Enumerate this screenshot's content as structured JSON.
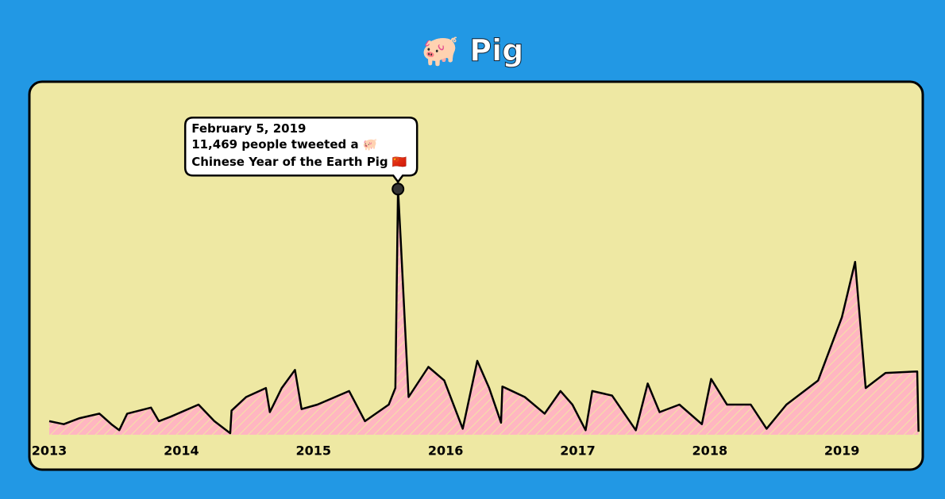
{
  "chart_data": {
    "type": "area",
    "title": "🐖 Pig",
    "x": [
      2013.0,
      2013.11,
      2013.23,
      2013.38,
      2013.47,
      2013.53,
      2013.59,
      2013.77,
      2013.83,
      2013.92,
      2014.13,
      2014.25,
      2014.37,
      2014.38,
      2014.49,
      2014.64,
      2014.67,
      2014.76,
      2014.86,
      2014.91,
      2015.03,
      2015.27,
      2015.39,
      2015.57,
      2015.62,
      2015.64,
      2015.66,
      2015.72,
      2015.87,
      2015.99,
      2016.13,
      2016.24,
      2016.33,
      2016.42,
      2016.43,
      2016.6,
      2016.75,
      2016.87,
      2016.96,
      2017.06,
      2017.11,
      2017.26,
      2017.44,
      2017.53,
      2017.62,
      2017.77,
      2017.94,
      2018.01,
      2018.13,
      2018.31,
      2018.43,
      2018.58,
      2018.82,
      2019.0,
      2019.1,
      2019.18,
      2019.33,
      2019.57,
      2019.58
    ],
    "series": [
      {
        "color": "#ffb6c1",
        "values": [
          900,
          700,
          1100,
          1400,
          700,
          300,
          1400,
          1800,
          900,
          1200,
          2000,
          900,
          100,
          1600,
          2500,
          3100,
          1500,
          3100,
          4300,
          1700,
          2000,
          2900,
          900,
          2000,
          3100,
          16300,
          13000,
          2500,
          4500,
          3600,
          400,
          4900,
          3100,
          800,
          3200,
          2500,
          1400,
          2900,
          2000,
          300,
          2900,
          2600,
          300,
          3400,
          1500,
          2000,
          700,
          3700,
          2000,
          2000,
          400,
          2000,
          3600,
          7800,
          11469,
          3100,
          4100,
          4200,
          200
        ]
      }
    ],
    "xlim": [
      2013,
      2019.6
    ],
    "xticks": [
      2013,
      2014,
      2015,
      2016,
      2017,
      2018,
      2019
    ],
    "ylim": [
      0,
      18000
    ],
    "annotation": {
      "date": "February 5, 2019",
      "text": "11,469 people tweeted a 🐖",
      "event": "Chinese Year of the Earth Pig 🇨🇳"
    }
  }
}
